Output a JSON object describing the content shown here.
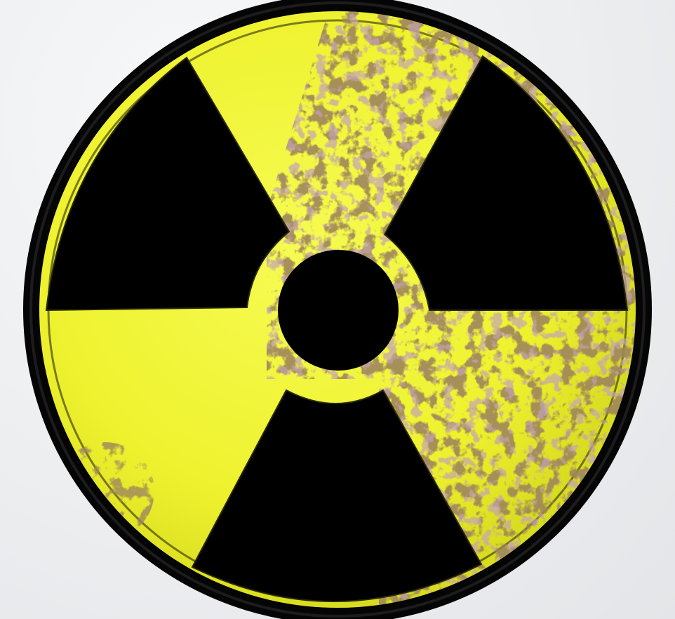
{
  "image": {
    "subject": "radiation-hazard-trefoil-symbol",
    "colors": {
      "background": "#eceef0",
      "sign_yellow": "#eef22e",
      "sign_yellow_highlight": "#f6fb52",
      "blade_black": "#000000",
      "rim_black": "#050505",
      "rust_brown": "#5a3d1c",
      "rust_dark": "#3a2a12",
      "grime_purple": "#8a5a78",
      "grime_green": "#5e7a3a"
    }
  }
}
